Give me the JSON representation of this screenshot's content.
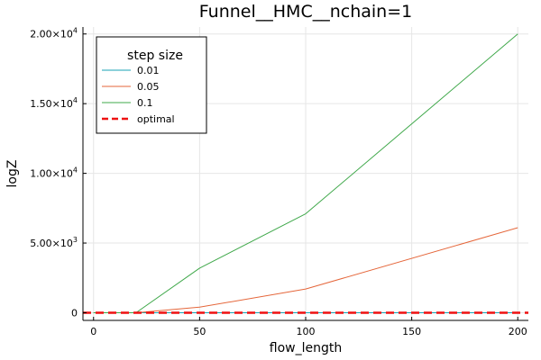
{
  "chart_data": {
    "type": "line",
    "title": "Funnel__HMC__nchain=1",
    "xlabel": "flow_length",
    "ylabel": "logZ",
    "xlim": [
      -5,
      205
    ],
    "ylim": [
      -550,
      20500
    ],
    "grid": true,
    "legend_position": "top-left",
    "legend_title": "step size",
    "x_ticks": [
      0,
      50,
      100,
      150,
      200
    ],
    "x_tick_labels": [
      "0",
      "50",
      "100",
      "150",
      "200"
    ],
    "y_ticks": [
      0,
      5000,
      10000,
      15000,
      20000
    ],
    "y_tick_labels": [
      {
        "mant": "0",
        "exp": ""
      },
      {
        "mant": "5.00×10",
        "exp": "3"
      },
      {
        "mant": "1.00×10",
        "exp": "4"
      },
      {
        "mant": "1.50×10",
        "exp": "4"
      },
      {
        "mant": "2.00×10",
        "exp": "4"
      }
    ],
    "series": [
      {
        "name": "0.01",
        "color": "#1aa3b5",
        "dash": "solid",
        "width": 1,
        "x": [
          0,
          10,
          20,
          50,
          100,
          200
        ],
        "y": [
          0,
          0,
          0,
          0,
          0,
          0
        ]
      },
      {
        "name": "0.05",
        "color": "#e5663a",
        "dash": "solid",
        "width": 1,
        "x": [
          0,
          10,
          20,
          50,
          100,
          200
        ],
        "y": [
          0,
          0,
          0,
          400,
          1700,
          6100
        ]
      },
      {
        "name": "0.1",
        "color": "#3fa84a",
        "dash": "solid",
        "width": 1,
        "x": [
          0,
          10,
          20,
          50,
          100,
          200
        ],
        "y": [
          0,
          0,
          0,
          3200,
          7100,
          20000
        ]
      },
      {
        "name": "optimal",
        "color": "#ee1111",
        "dash": "dashed",
        "width": 2.5,
        "x": [
          -5,
          205
        ],
        "y": [
          0,
          0
        ]
      }
    ]
  }
}
